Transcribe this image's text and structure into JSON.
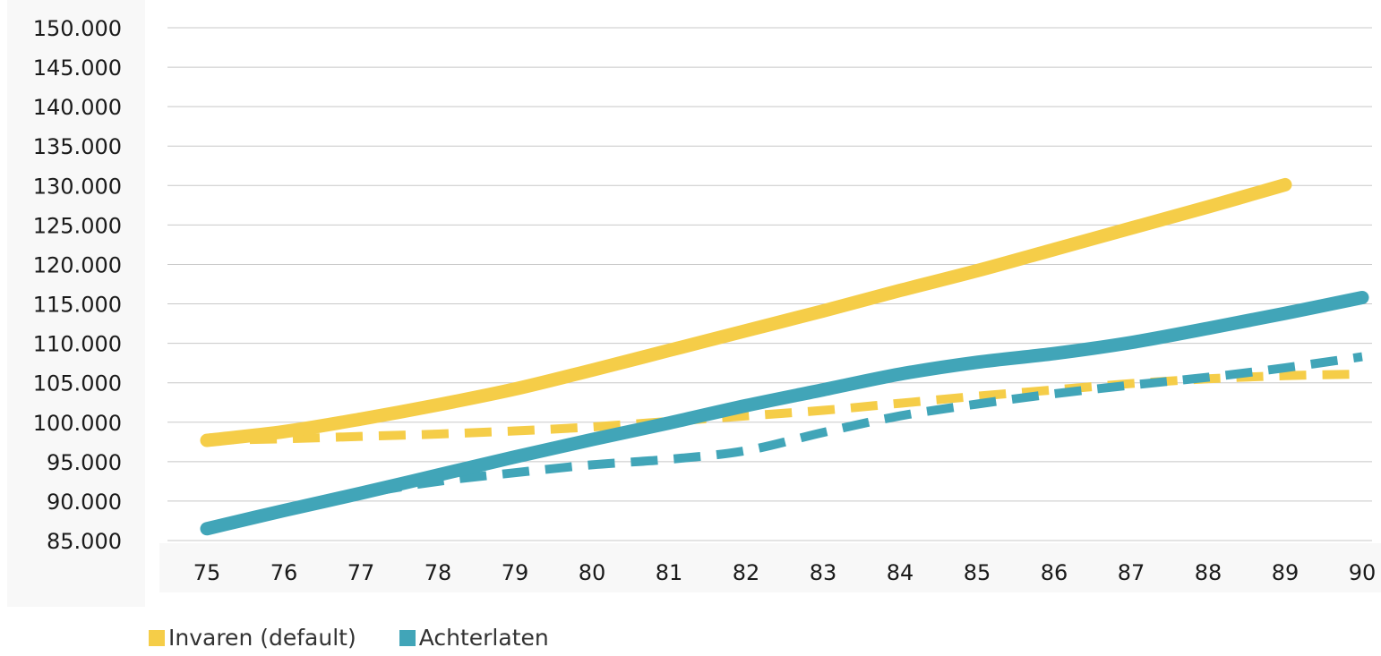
{
  "chart_data": {
    "type": "line",
    "title": "",
    "xlabel": "",
    "ylabel": "",
    "x": [
      75,
      76,
      77,
      78,
      79,
      80,
      81,
      82,
      83,
      84,
      85,
      86,
      87,
      88,
      89,
      90
    ],
    "x_tick_labels": [
      "75",
      "76",
      "77",
      "78",
      "79",
      "80",
      "81",
      "82",
      "83",
      "84",
      "85",
      "86",
      "87",
      "88",
      "89",
      "90"
    ],
    "y_tick_labels": [
      "150.000",
      "145.000",
      "140.000",
      "135.000",
      "130.000",
      "125.000",
      "120.000",
      "115.000",
      "110.000",
      "105.000",
      "100.000",
      "95.000",
      "90.000",
      "85.000"
    ],
    "ylim": [
      85000,
      150000
    ],
    "grid": true,
    "legend_position": "bottom-left",
    "series": [
      {
        "name": "Invaren (default)",
        "style": "solid",
        "color": "#f5cd48",
        "values": [
          97700,
          98800,
          100400,
          102200,
          104200,
          106600,
          109100,
          111600,
          114100,
          116700,
          119200,
          121900,
          124600,
          127300,
          130100,
          null
        ]
      },
      {
        "name": "",
        "style": "dashed",
        "color": "#f5cd48",
        "values": [
          97700,
          97900,
          98200,
          98500,
          98900,
          99400,
          100100,
          100800,
          101500,
          102400,
          103300,
          104100,
          104900,
          105500,
          105900,
          106100
        ]
      },
      {
        "name": "Achterlaten",
        "style": "solid",
        "color": "#41a5b8",
        "values": [
          86500,
          88800,
          91000,
          93300,
          95600,
          97800,
          99900,
          102100,
          104100,
          106100,
          107600,
          108700,
          110100,
          111900,
          113800,
          115800
        ]
      },
      {
        "name": "",
        "style": "dashed",
        "color": "#41a5b8",
        "values": [
          86500,
          88700,
          90900,
          92500,
          93600,
          94600,
          95300,
          96400,
          98700,
          100800,
          102300,
          103600,
          104700,
          105700,
          106900,
          108300
        ]
      }
    ]
  },
  "legend": {
    "items": [
      {
        "label": "Invaren (default)",
        "color": "#f5cd48"
      },
      {
        "label": "Achterlaten",
        "color": "#41a5b8"
      }
    ]
  }
}
